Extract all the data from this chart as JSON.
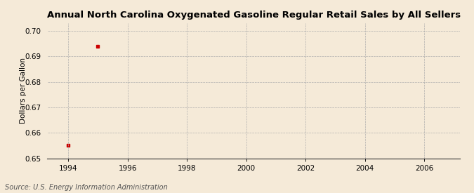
{
  "title": "Annual North Carolina Oxygenated Gasoline Regular Retail Sales by All Sellers",
  "ylabel": "Dollars per Gallon",
  "source": "Source: U.S. Energy Information Administration",
  "x_data": [
    1994,
    1995
  ],
  "y_data": [
    0.655,
    0.694
  ],
  "marker_color": "#cc0000",
  "marker_style": "s",
  "marker_size": 3.5,
  "xlim": [
    1993.3,
    2007.2
  ],
  "ylim": [
    0.65,
    0.703
  ],
  "xticks": [
    1994,
    1996,
    1998,
    2000,
    2002,
    2004,
    2006
  ],
  "yticks": [
    0.65,
    0.66,
    0.67,
    0.68,
    0.69,
    0.7
  ],
  "background_color": "#f5ead8",
  "grid_color": "#aaaaaa",
  "title_fontsize": 9.5,
  "label_fontsize": 7.5,
  "tick_fontsize": 7.5,
  "source_fontsize": 7
}
